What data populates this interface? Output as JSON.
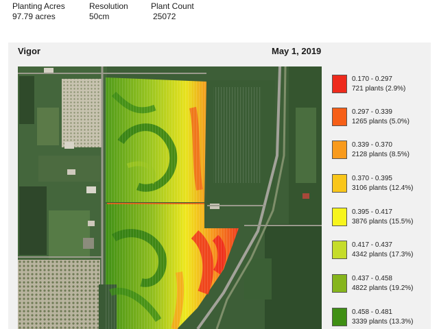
{
  "stats": [
    {
      "label": "Planting Acres",
      "value": "97.79 acres"
    },
    {
      "label": "Resolution",
      "value": "50cm"
    },
    {
      "label": "Plant Count",
      "value": "25072"
    }
  ],
  "panel": {
    "title": "Vigor",
    "date": "May 1, 2019"
  },
  "legend": [
    {
      "range": "0.170 - 0.297",
      "count": "721 plants (2.9%)",
      "color": "#ee2a1c"
    },
    {
      "range": "0.297 - 0.339",
      "count": "1265 plants (5.0%)",
      "color": "#f65f17"
    },
    {
      "range": "0.339 - 0.370",
      "count": "2128 plants (8.5%)",
      "color": "#f89a1c"
    },
    {
      "range": "0.370 - 0.395",
      "count": "3106 plants (12.4%)",
      "color": "#f9c61a"
    },
    {
      "range": "0.395 - 0.417",
      "count": "3876 plants (15.5%)",
      "color": "#f7f51c"
    },
    {
      "range": "0.417 - 0.437",
      "count": "4342 plants (17.3%)",
      "color": "#c5dc2a"
    },
    {
      "range": "0.437 - 0.458",
      "count": "4822 plants (19.2%)",
      "color": "#86b51c"
    },
    {
      "range": "0.458 - 0.481",
      "count": "3339 plants (13.3%)",
      "color": "#3f8f14"
    }
  ]
}
